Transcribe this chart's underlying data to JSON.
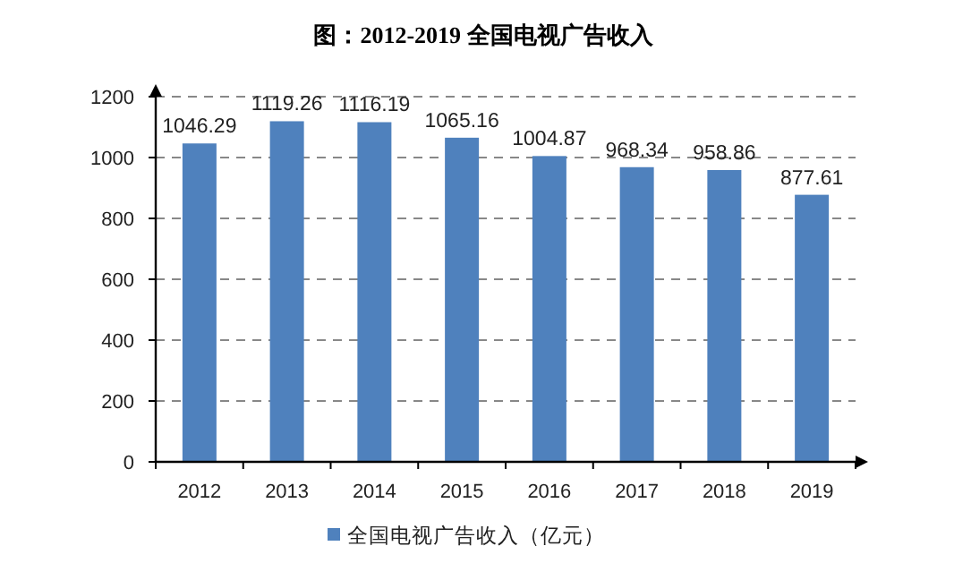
{
  "chart_data": {
    "type": "bar",
    "title": "图：2012-2019 全国电视广告收入",
    "categories": [
      "2012",
      "2013",
      "2014",
      "2015",
      "2016",
      "2017",
      "2018",
      "2019"
    ],
    "series": [
      {
        "name": "全国电视广告收入（亿元）",
        "color": "#4f81bd",
        "values": [
          1046.29,
          1119.26,
          1116.19,
          1065.16,
          1004.87,
          968.34,
          958.86,
          877.61
        ]
      }
    ],
    "ylim": [
      0,
      1200
    ],
    "yticks": [
      0,
      200,
      400,
      600,
      800,
      1000,
      1200
    ],
    "grid": "y",
    "data_labels": true,
    "legend": "bottom"
  }
}
